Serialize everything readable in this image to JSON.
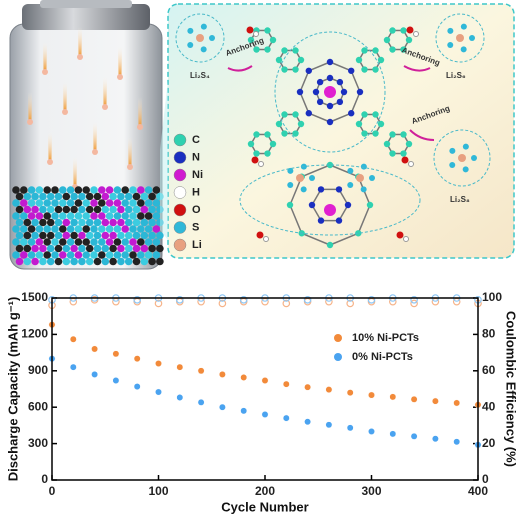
{
  "illustration": {
    "legend": [
      "C",
      "N",
      "Ni",
      "H",
      "O",
      "S",
      "Li"
    ],
    "species": {
      "top_left": "Li₂S₄",
      "top_right": "Li₂S₆",
      "right": "Li₂S₈"
    },
    "anchoring": [
      "Anchoring",
      "Anchoring",
      "Anchoring"
    ]
  },
  "chart_data": {
    "type": "scatter",
    "xlabel": "Cycle Number",
    "ylabel": "Discharge Capacity (mAh g⁻¹)",
    "y2label": "Coulombic Efficiency (%)",
    "x": [
      0,
      20,
      40,
      60,
      80,
      100,
      120,
      140,
      160,
      180,
      200,
      220,
      240,
      260,
      280,
      300,
      320,
      340,
      360,
      380,
      400
    ],
    "xlim": [
      0,
      400
    ],
    "xticks": [
      0,
      100,
      200,
      300,
      400
    ],
    "ylim": [
      0,
      1500
    ],
    "yticks": [
      0,
      300,
      600,
      900,
      1200,
      1500
    ],
    "y2lim": [
      0,
      100
    ],
    "y2ticks": [
      0,
      20,
      40,
      60,
      80,
      100
    ],
    "legend": "upper right",
    "series": [
      {
        "name": "10% Ni-PCTs",
        "color": "#f28a3a",
        "values": [
          1280,
          1160,
          1080,
          1040,
          1000,
          960,
          930,
          900,
          870,
          845,
          820,
          790,
          765,
          745,
          720,
          700,
          685,
          665,
          650,
          635,
          620
        ]
      },
      {
        "name": "0% Ni-PCTs",
        "color": "#4aa3f0",
        "values": [
          1000,
          930,
          870,
          820,
          770,
          725,
          680,
          640,
          600,
          570,
          540,
          510,
          480,
          455,
          430,
          400,
          380,
          360,
          340,
          315,
          290
        ]
      },
      {
        "color": "#f6b48a",
        "axis": "y2",
        "values": [
          96,
          98,
          99,
          98,
          98,
          97,
          98,
          98,
          97,
          98,
          98,
          97,
          98,
          98,
          97,
          98,
          98,
          97,
          98,
          98,
          97
        ]
      },
      {
        "color": "#8cc6f5",
        "axis": "y2",
        "values": [
          99,
          100,
          100,
          100,
          99,
          100,
          99,
          100,
          100,
          99,
          100,
          100,
          99,
          100,
          100,
          99,
          100,
          99,
          100,
          100,
          99
        ]
      }
    ]
  }
}
